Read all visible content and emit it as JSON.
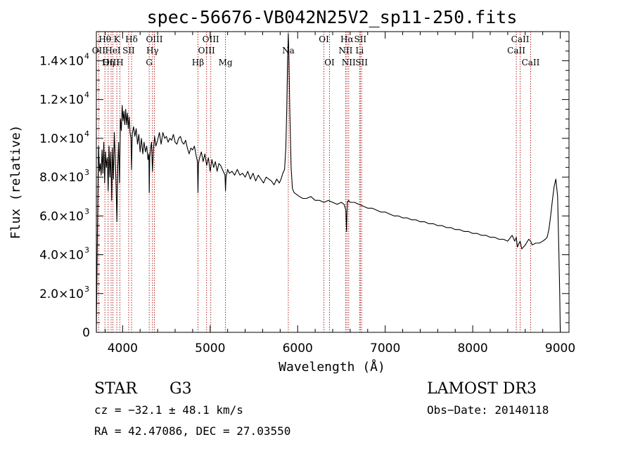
{
  "chart_data": {
    "type": "line",
    "title": "spec-56676-VB042N25V2_sp11-250.fits",
    "xlabel": "Wavelength (Å)",
    "ylabel": "Flux (relative)",
    "xlim": [
      3700,
      9100
    ],
    "ylim": [
      0,
      15500
    ],
    "x_ticks": [
      {
        "value": 4000,
        "label": "4000"
      },
      {
        "value": 5000,
        "label": "5000"
      },
      {
        "value": 6000,
        "label": "6000"
      },
      {
        "value": 7000,
        "label": "7000"
      },
      {
        "value": 8000,
        "label": "8000"
      },
      {
        "value": 9000,
        "label": "9000"
      }
    ],
    "y_ticks": [
      {
        "value": 0,
        "mant": "0",
        "exp": ""
      },
      {
        "value": 2000,
        "mant": "2.0×10",
        "exp": "3"
      },
      {
        "value": 4000,
        "mant": "4.0×10",
        "exp": "3"
      },
      {
        "value": 6000,
        "mant": "6.0×10",
        "exp": "3"
      },
      {
        "value": 8000,
        "mant": "8.0×10",
        "exp": "3"
      },
      {
        "value": 10000,
        "mant": "1.0×10",
        "exp": "4"
      },
      {
        "value": 12000,
        "mant": "1.2×10",
        "exp": "4"
      },
      {
        "value": 14000,
        "mant": "1.4×10",
        "exp": "4"
      }
    ],
    "spectral_lines": [
      {
        "label": "Hθ",
        "wavelength": 3798,
        "row": 0
      },
      {
        "label": "OII",
        "wavelength": 3727,
        "row": 1
      },
      {
        "label": "OIII",
        "wavelength": 3869,
        "row": 2
      },
      {
        "label": "Hη",
        "wavelength": 3835,
        "row": 2
      },
      {
        "label": "K",
        "wavelength": 3934,
        "row": 0
      },
      {
        "label": "HeI",
        "wavelength": 3889,
        "row": 1
      },
      {
        "label": "H",
        "wavelength": 3969,
        "row": 2
      },
      {
        "label": "Hδ",
        "wavelength": 4102,
        "row": 0
      },
      {
        "label": "SII",
        "wavelength": 4069,
        "row": 1
      },
      {
        "label": "OIII",
        "wavelength": 4363,
        "row": 0
      },
      {
        "label": "Hγ",
        "wavelength": 4341,
        "row": 1
      },
      {
        "label": "G",
        "wavelength": 4304,
        "row": 2
      },
      {
        "label": "Hβ",
        "wavelength": 4861,
        "row": 2
      },
      {
        "label": "OIII",
        "wavelength": 5007,
        "row": 0
      },
      {
        "label": "OIII",
        "wavelength": 4959,
        "row": 1
      },
      {
        "label": "Mg",
        "wavelength": 5175,
        "row": 2
      },
      {
        "label": "Na",
        "wavelength": 5893,
        "row": 1
      },
      {
        "label": "OI",
        "wavelength": 6300,
        "row": 0
      },
      {
        "label": "OI",
        "wavelength": 6364,
        "row": 2
      },
      {
        "label": "Hα",
        "wavelength": 6563,
        "row": 0
      },
      {
        "label": "SII",
        "wavelength": 6716,
        "row": 0
      },
      {
        "label": "NII",
        "wavelength": 6548,
        "row": 1
      },
      {
        "label": "Li",
        "wavelength": 6708,
        "row": 1
      },
      {
        "label": "NII",
        "wavelength": 6583,
        "row": 2
      },
      {
        "label": "SII",
        "wavelength": 6731,
        "row": 2
      },
      {
        "label": "CaII",
        "wavelength": 8542,
        "row": 0
      },
      {
        "label": "CaII",
        "wavelength": 8498,
        "row": 1
      },
      {
        "label": "CaII",
        "wavelength": 8662,
        "row": 2
      }
    ],
    "series": [
      {
        "name": "flux",
        "x": [
          3700,
          3712,
          3725,
          3735,
          3745,
          3755,
          3765,
          3775,
          3785,
          3795,
          3805,
          3815,
          3825,
          3835,
          3845,
          3855,
          3865,
          3875,
          3885,
          3895,
          3905,
          3915,
          3925,
          3935,
          3945,
          3955,
          3965,
          3975,
          3985,
          3995,
          4005,
          4015,
          4025,
          4035,
          4045,
          4055,
          4065,
          4075,
          4085,
          4095,
          4102,
          4110,
          4125,
          4140,
          4155,
          4170,
          4185,
          4200,
          4215,
          4230,
          4245,
          4260,
          4275,
          4290,
          4300,
          4304,
          4310,
          4320,
          4330,
          4341,
          4352,
          4365,
          4380,
          4400,
          4420,
          4440,
          4460,
          4480,
          4500,
          4520,
          4540,
          4560,
          4580,
          4600,
          4620,
          4640,
          4660,
          4680,
          4700,
          4720,
          4740,
          4760,
          4780,
          4800,
          4820,
          4840,
          4855,
          4861,
          4867,
          4880,
          4900,
          4920,
          4940,
          4960,
          4980,
          5000,
          5020,
          5040,
          5060,
          5080,
          5100,
          5120,
          5140,
          5160,
          5170,
          5175,
          5182,
          5200,
          5220,
          5250,
          5280,
          5310,
          5340,
          5370,
          5400,
          5430,
          5460,
          5490,
          5520,
          5550,
          5580,
          5610,
          5640,
          5670,
          5700,
          5730,
          5760,
          5790,
          5810,
          5830,
          5850,
          5865,
          5875,
          5885,
          5893,
          5900,
          5910,
          5925,
          5940,
          5960,
          5990,
          6020,
          6060,
          6100,
          6150,
          6200,
          6250,
          6300,
          6350,
          6400,
          6450,
          6500,
          6530,
          6550,
          6558,
          6563,
          6568,
          6580,
          6600,
          6650,
          6700,
          6750,
          6800,
          6850,
          6900,
          6950,
          7000,
          7050,
          7100,
          7150,
          7200,
          7250,
          7300,
          7350,
          7400,
          7450,
          7500,
          7550,
          7600,
          7650,
          7700,
          7750,
          7800,
          7850,
          7900,
          7950,
          8000,
          8050,
          8100,
          8150,
          8200,
          8250,
          8300,
          8350,
          8400,
          8450,
          8480,
          8498,
          8510,
          8530,
          8542,
          8560,
          8600,
          8640,
          8662,
          8680,
          8720,
          8760,
          8800,
          8830,
          8850,
          8870,
          8890,
          8910,
          8930,
          8950,
          8970,
          8985,
          8995,
          9000,
          9005
        ],
        "y": [
          0,
          5200,
          9600,
          8300,
          8700,
          8100,
          9400,
          8200,
          9800,
          7700,
          9300,
          8500,
          9000,
          7300,
          9600,
          8000,
          9300,
          6800,
          9500,
          7900,
          10300,
          9100,
          7600,
          5700,
          8600,
          9800,
          7700,
          11000,
          10400,
          11700,
          10900,
          11400,
          10700,
          11500,
          10700,
          11300,
          10500,
          11100,
          10300,
          10000,
          8400,
          10200,
          10600,
          10100,
          10500,
          9700,
          10200,
          9300,
          10000,
          9200,
          9800,
          9300,
          9600,
          8900,
          9200,
          7200,
          9000,
          9500,
          9800,
          8300,
          9400,
          10100,
          9600,
          9900,
          10300,
          9700,
          10300,
          10000,
          10100,
          9800,
          10000,
          9900,
          10200,
          9800,
          9700,
          10000,
          10100,
          9800,
          9700,
          9900,
          9500,
          9200,
          9500,
          9400,
          9600,
          9100,
          8800,
          7200,
          8700,
          9000,
          9300,
          8800,
          9200,
          8600,
          9000,
          8300,
          8900,
          8500,
          8800,
          8300,
          8700,
          8600,
          8400,
          8200,
          8100,
          7300,
          8000,
          8400,
          8200,
          8300,
          8100,
          8400,
          8100,
          8200,
          8000,
          8300,
          7900,
          8200,
          7800,
          8100,
          7900,
          7700,
          8000,
          7900,
          7800,
          7600,
          7900,
          7700,
          7900,
          8200,
          8400,
          9500,
          11500,
          14000,
          15400,
          14200,
          11500,
          8500,
          7400,
          7200,
          7100,
          7000,
          6900,
          6900,
          7000,
          6800,
          6800,
          6700,
          6800,
          6700,
          6600,
          6700,
          6600,
          6300,
          5200,
          6100,
          6700,
          6800,
          6700,
          6700,
          6600,
          6500,
          6400,
          6400,
          6300,
          6200,
          6200,
          6100,
          6000,
          6000,
          5900,
          5900,
          5800,
          5800,
          5700,
          5700,
          5600,
          5600,
          5500,
          5500,
          5400,
          5400,
          5300,
          5300,
          5200,
          5200,
          5100,
          5100,
          5000,
          5000,
          4900,
          4900,
          4800,
          4800,
          4700,
          5000,
          4700,
          4900,
          4400,
          4600,
          4700,
          4300,
          4500,
          4800,
          4700,
          4500,
          4600,
          4600,
          4700,
          4800,
          4900,
          5300,
          6000,
          6800,
          7500,
          7900,
          7000,
          4000,
          1800,
          0,
          0
        ]
      }
    ]
  },
  "info": {
    "object_class": "STAR",
    "subclass": "G3",
    "survey": "LAMOST DR3",
    "redshift": "cz = −32.1 ± 48.1 km/s",
    "obs_date": "Obs−Date: 20140118",
    "coords": "RA =  42.47086, DEC =  27.03550"
  },
  "colors": {
    "line_marker": "#b22222",
    "spectrum": "#000000",
    "axes": "#000000"
  }
}
